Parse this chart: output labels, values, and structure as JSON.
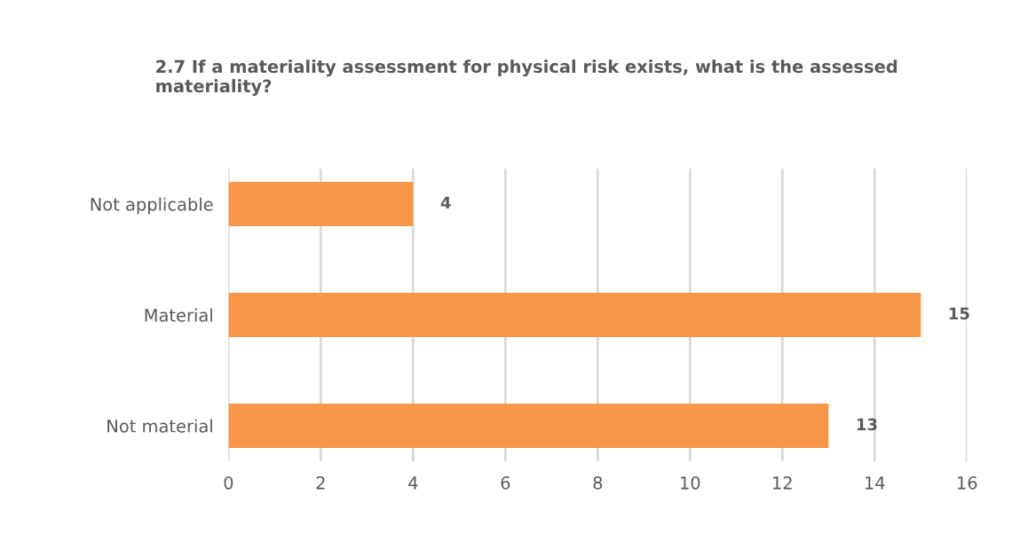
{
  "chart_data": {
    "type": "bar",
    "orientation": "horizontal",
    "title": "2.7 If a materiality assessment for physical risk exists, what is the assessed materiality?",
    "categories": [
      "Not applicable",
      "Material",
      "Not material"
    ],
    "values": [
      4,
      15,
      13
    ],
    "color": "#f79646",
    "xlim": [
      0,
      16
    ],
    "xticks": [
      0,
      2,
      4,
      6,
      8,
      10,
      12,
      14,
      16
    ],
    "grid": "x",
    "data_labels": true
  }
}
